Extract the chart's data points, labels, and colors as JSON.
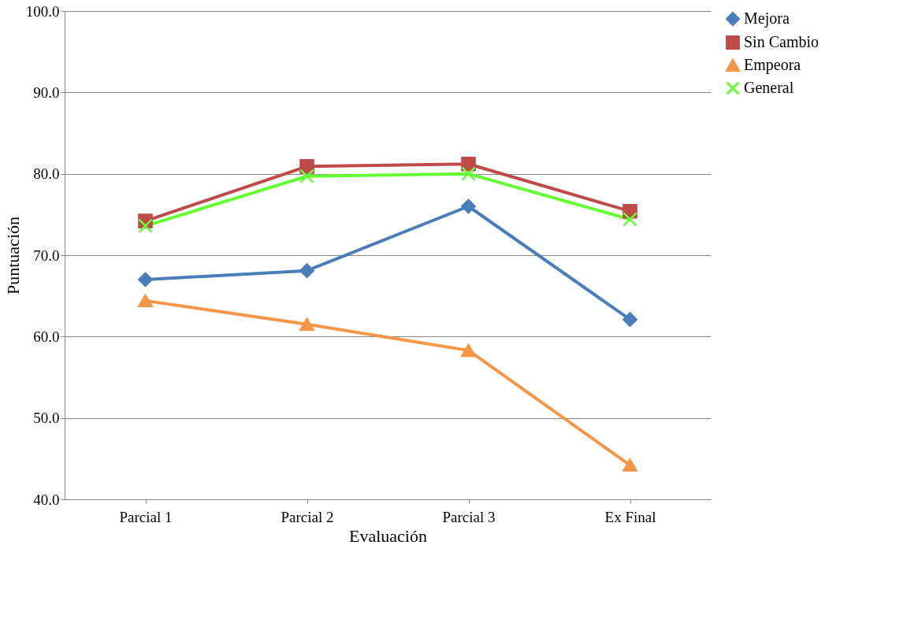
{
  "chart_data": {
    "type": "line",
    "xlabel": "Evaluación",
    "ylabel": "Puntuación",
    "categories": [
      "Parcial 1",
      "Parcial 2",
      "Parcial 3",
      "Ex Final"
    ],
    "series": [
      {
        "name": "Mejora",
        "color": "#4a7ebb",
        "marker": "diamond",
        "values": [
          67.0,
          68.1,
          76.0,
          62.1
        ]
      },
      {
        "name": "Sin Cambio",
        "color": "#be4b48",
        "marker": "square",
        "values": [
          74.2,
          80.9,
          81.2,
          75.4
        ]
      },
      {
        "name": "Empeora",
        "color": "#f79646",
        "marker": "triangle",
        "values": [
          64.4,
          61.5,
          58.3,
          44.2
        ]
      },
      {
        "name": "General",
        "color": "#66ff33",
        "marker": "cross",
        "values": [
          73.6,
          79.7,
          80.0,
          74.4
        ]
      }
    ],
    "ylim": [
      40,
      100
    ],
    "yticks": [
      {
        "value": 40,
        "label": "40.0"
      },
      {
        "value": 50,
        "label": "50.0"
      },
      {
        "value": 60,
        "label": "60.0"
      },
      {
        "value": 70,
        "label": "70.0"
      },
      {
        "value": 80,
        "label": "80.0"
      },
      {
        "value": 90,
        "label": "90.0"
      },
      {
        "value": 100,
        "label": "100.0"
      }
    ],
    "grid": "y",
    "legend": "right",
    "line_style": "solid"
  }
}
